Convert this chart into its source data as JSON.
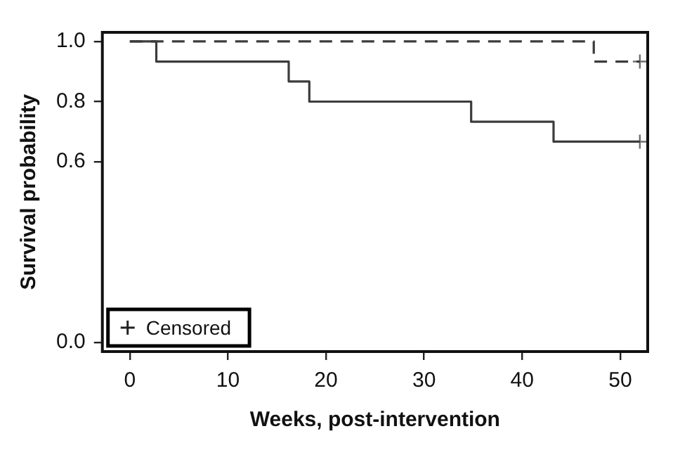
{
  "chart_data": {
    "type": "step",
    "xlabel": "Weeks, post-intervention",
    "ylabel": "Survival probability",
    "xlim": [
      -2.8,
      52.8
    ],
    "xticks": [
      0,
      10,
      20,
      30,
      40,
      50
    ],
    "ylim": [
      -0.03,
      1.03
    ],
    "yticks": [
      {
        "value": 0,
        "label": "0.0"
      },
      {
        "value": 0.6,
        "label": "0.6"
      },
      {
        "value": 0.8,
        "label": "0.8"
      },
      {
        "value": 1,
        "label": "1.0"
      }
    ],
    "grid": false,
    "legend": "bottom left",
    "marker": "none",
    "series": [
      {
        "type": "step",
        "color": "#3c3c3c",
        "line_style": "solid",
        "x": [
          0,
          2.7,
          16.2,
          18.3,
          34.8,
          43.2,
          52
        ],
        "values": [
          1,
          0.933,
          0.867,
          0.8,
          0.733,
          0.667,
          0.667
        ]
      },
      {
        "type": "step",
        "color": "#3c3c3c",
        "line_style": "dashed",
        "x": [
          0,
          47.3,
          52
        ],
        "values": [
          1,
          0.933,
          0.933
        ]
      },
      {
        "type": "scatter",
        "name": "Censored",
        "color": "#6e6e6e",
        "marker": "cross",
        "x": [
          52,
          52
        ],
        "values": [
          0.933,
          0.667
        ]
      }
    ]
  }
}
